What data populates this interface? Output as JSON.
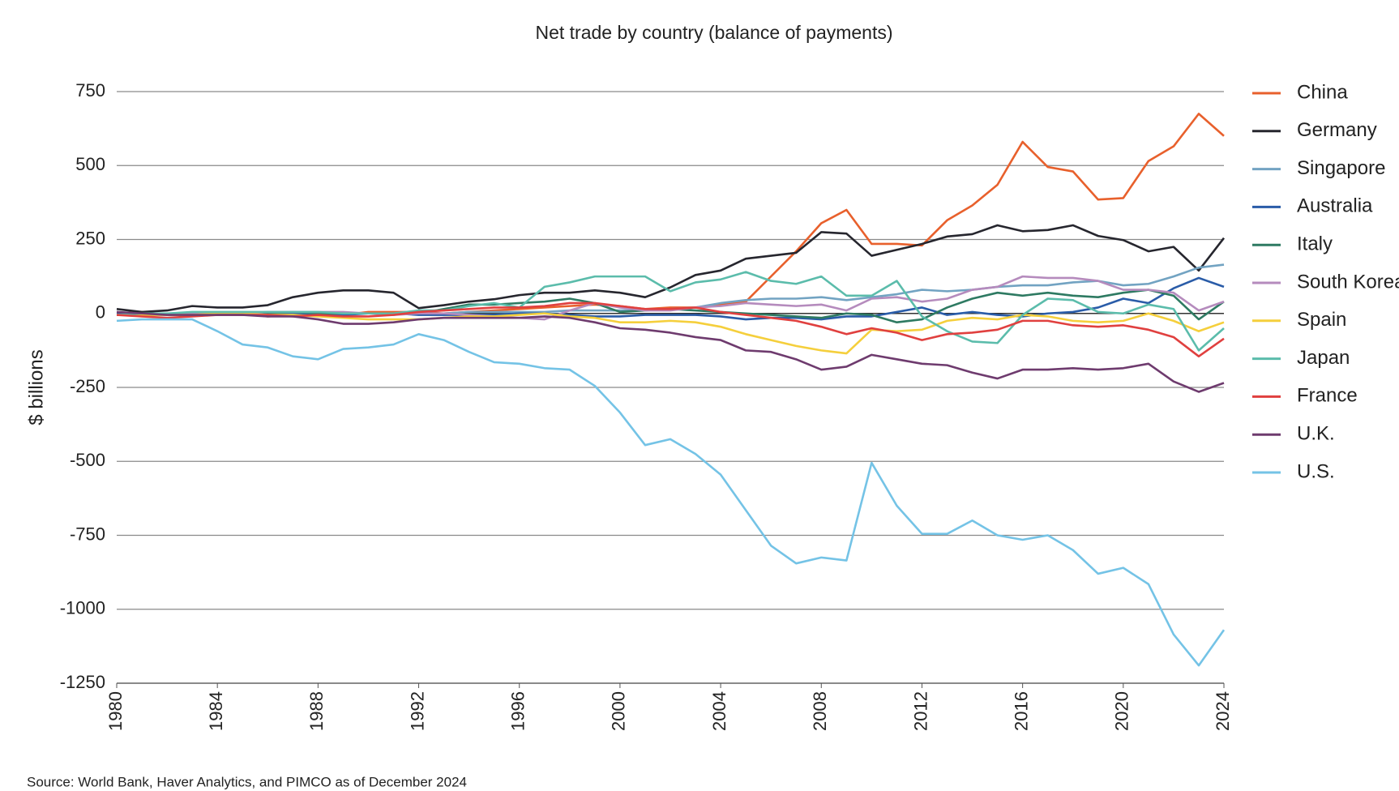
{
  "chart_data": {
    "type": "line",
    "title": "Net trade by country (balance of payments)",
    "y_label": "$ billions",
    "source": "Source: World Bank, Haver Analytics, and PIMCO as of December 2024",
    "x": [
      1980,
      1981,
      1982,
      1983,
      1984,
      1985,
      1986,
      1987,
      1988,
      1989,
      1990,
      1991,
      1992,
      1993,
      1994,
      1995,
      1996,
      1997,
      1998,
      1999,
      2000,
      2001,
      2002,
      2003,
      2004,
      2005,
      2006,
      2007,
      2008,
      2009,
      2010,
      2011,
      2012,
      2013,
      2014,
      2015,
      2016,
      2017,
      2018,
      2019,
      2020,
      2021,
      2022,
      2023,
      2024
    ],
    "xlim": [
      1980,
      2024
    ],
    "xticks": [
      1980,
      1984,
      1988,
      1992,
      1996,
      2000,
      2004,
      2008,
      2012,
      2016,
      2020,
      2024
    ],
    "ylim": [
      -1250,
      750
    ],
    "yticks": [
      750,
      500,
      250,
      0,
      -250,
      -500,
      -750,
      -1000,
      -1250
    ],
    "grid": true,
    "legend": "right",
    "series": [
      {
        "name": "China",
        "color": "#e8602c",
        "values": [
          0,
          5,
          -5,
          -5,
          -5,
          0,
          -10,
          -5,
          -5,
          -5,
          5,
          5,
          5,
          0,
          5,
          10,
          15,
          20,
          25,
          30,
          25,
          15,
          20,
          20,
          30,
          40,
          125,
          210,
          305,
          350,
          235,
          235,
          230,
          315,
          365,
          435,
          580,
          495,
          480,
          385,
          390,
          515,
          565,
          675,
          600
        ]
      },
      {
        "name": "Germany",
        "color": "#26262e",
        "values": [
          15,
          5,
          10,
          25,
          20,
          20,
          28,
          55,
          70,
          78,
          78,
          70,
          18,
          28,
          40,
          48,
          62,
          70,
          70,
          78,
          70,
          55,
          88,
          130,
          145,
          185,
          195,
          205,
          275,
          270,
          195,
          215,
          235,
          260,
          268,
          298,
          278,
          282,
          298,
          262,
          248,
          210,
          225,
          145,
          255
        ]
      },
      {
        "name": "Singapore",
        "color": "#72a3c2",
        "values": [
          0,
          0,
          0,
          0,
          0,
          0,
          0,
          0,
          0,
          0,
          0,
          0,
          0,
          0,
          5,
          5,
          5,
          5,
          10,
          10,
          10,
          10,
          15,
          20,
          35,
          45,
          50,
          50,
          55,
          45,
          55,
          65,
          80,
          75,
          80,
          90,
          95,
          95,
          105,
          110,
          95,
          100,
          125,
          155,
          165
        ]
      },
      {
        "name": "Australia",
        "color": "#2a5ca8",
        "values": [
          0,
          -5,
          -5,
          0,
          0,
          -5,
          -5,
          0,
          0,
          -5,
          0,
          0,
          -5,
          -5,
          -5,
          -5,
          0,
          0,
          -5,
          -10,
          -10,
          -5,
          -5,
          -5,
          -10,
          -20,
          -15,
          -15,
          -20,
          -10,
          -10,
          5,
          20,
          -5,
          5,
          -5,
          -10,
          0,
          5,
          20,
          50,
          35,
          85,
          120,
          90
        ]
      },
      {
        "name": "Italy",
        "color": "#2e7a62",
        "values": [
          -5,
          -5,
          0,
          0,
          0,
          0,
          0,
          5,
          0,
          0,
          0,
          0,
          0,
          15,
          30,
          30,
          35,
          40,
          50,
          35,
          5,
          10,
          15,
          10,
          5,
          0,
          -5,
          -10,
          -15,
          0,
          -5,
          -30,
          -20,
          20,
          50,
          70,
          60,
          70,
          60,
          55,
          70,
          80,
          60,
          -20,
          40
        ]
      },
      {
        "name": "South Korea",
        "color": "#b58bbd",
        "values": [
          -5,
          -5,
          -5,
          0,
          0,
          0,
          5,
          5,
          5,
          5,
          0,
          -5,
          0,
          0,
          -5,
          -10,
          -15,
          -20,
          10,
          35,
          20,
          10,
          10,
          20,
          25,
          35,
          30,
          25,
          30,
          10,
          50,
          55,
          40,
          50,
          80,
          90,
          125,
          120,
          120,
          110,
          80,
          80,
          70,
          10,
          40
        ]
      },
      {
        "name": "Spain",
        "color": "#f5cf3c",
        "values": [
          -5,
          -5,
          -5,
          -5,
          0,
          0,
          -5,
          -5,
          -10,
          -15,
          -20,
          -20,
          -20,
          -15,
          -10,
          -10,
          -5,
          0,
          -10,
          -15,
          -30,
          -30,
          -25,
          -30,
          -45,
          -70,
          -90,
          -110,
          -125,
          -135,
          -55,
          -60,
          -55,
          -25,
          -15,
          -20,
          -5,
          -10,
          -25,
          -30,
          -25,
          0,
          -25,
          -60,
          -30
        ]
      },
      {
        "name": "Japan",
        "color": "#5bbcab",
        "values": [
          -5,
          0,
          0,
          5,
          5,
          5,
          5,
          5,
          5,
          0,
          0,
          0,
          10,
          10,
          25,
          35,
          20,
          90,
          105,
          125,
          125,
          125,
          75,
          105,
          115,
          140,
          110,
          100,
          125,
          60,
          60,
          110,
          -10,
          -60,
          -95,
          -100,
          -5,
          50,
          45,
          5,
          0,
          30,
          15,
          -125,
          -50
        ]
      },
      {
        "name": "France",
        "color": "#e0403f",
        "values": [
          -5,
          -10,
          -15,
          -10,
          -5,
          -5,
          -5,
          -10,
          -5,
          -10,
          -10,
          -5,
          5,
          10,
          15,
          20,
          20,
          25,
          35,
          35,
          25,
          15,
          15,
          20,
          5,
          -5,
          -15,
          -25,
          -45,
          -70,
          -50,
          -65,
          -90,
          -70,
          -65,
          -55,
          -25,
          -25,
          -40,
          -45,
          -40,
          -55,
          -80,
          -145,
          -85
        ]
      },
      {
        "name": "U.K.",
        "color": "#6e3b6e",
        "values": [
          5,
          0,
          -5,
          -5,
          -5,
          -5,
          -10,
          -10,
          -20,
          -35,
          -35,
          -30,
          -20,
          -15,
          -15,
          -15,
          -15,
          -10,
          -15,
          -30,
          -50,
          -55,
          -65,
          -80,
          -90,
          -125,
          -130,
          -155,
          -190,
          -180,
          -140,
          -155,
          -170,
          -175,
          -200,
          -220,
          -190,
          -190,
          -185,
          -190,
          -185,
          -170,
          -230,
          -265,
          -235
        ]
      },
      {
        "name": "U.S.",
        "color": "#74c3e6",
        "values": [
          -25,
          -20,
          -20,
          -20,
          -60,
          -105,
          -115,
          -145,
          -155,
          -120,
          -115,
          -105,
          -70,
          -90,
          -130,
          -165,
          -170,
          -185,
          -190,
          -245,
          -335,
          -445,
          -425,
          -475,
          -545,
          -665,
          -785,
          -845,
          -825,
          -835,
          -505,
          -650,
          -745,
          -745,
          -700,
          -750,
          -765,
          -750,
          -800,
          -880,
          -860,
          -915,
          -1085,
          -1190,
          -1070
        ]
      }
    ]
  }
}
